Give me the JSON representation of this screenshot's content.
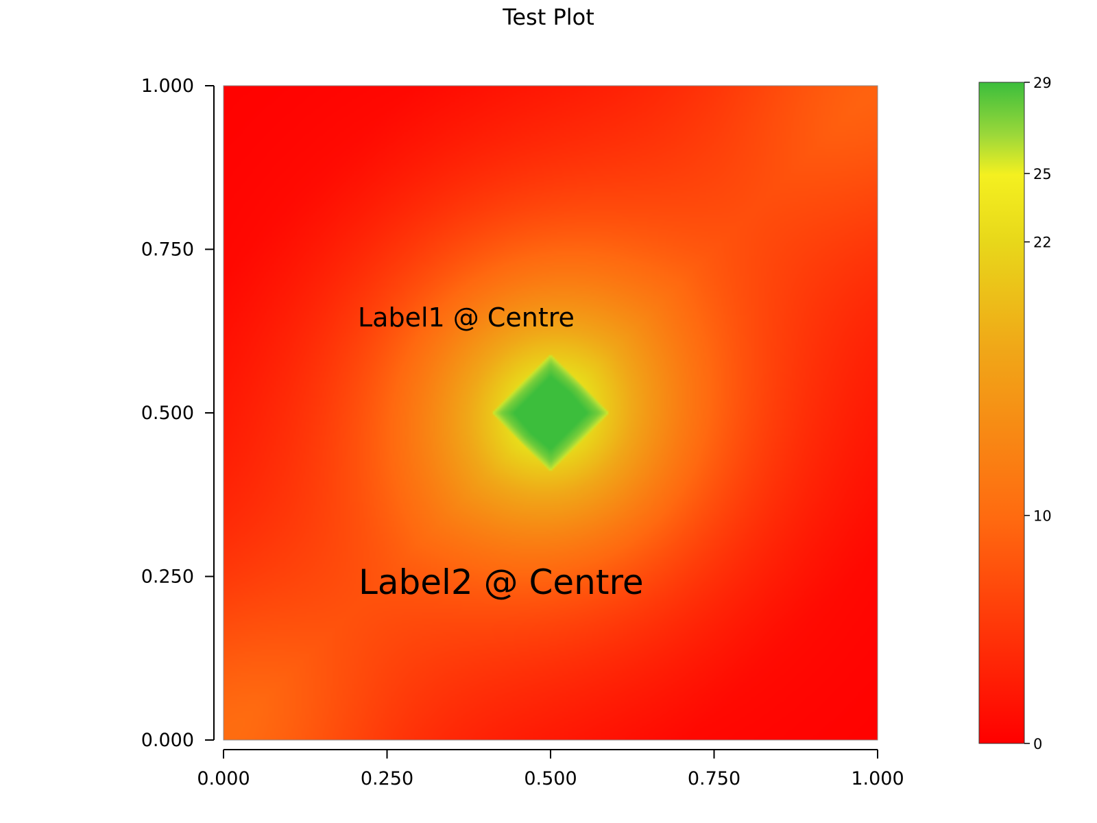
{
  "chart_data": {
    "type": "heatmap",
    "title": "Test Plot",
    "xlabel": "",
    "ylabel": "",
    "xlim": [
      0,
      1
    ],
    "ylim": [
      0,
      1
    ],
    "x_ticks": [
      "0.000",
      "0.250",
      "0.500",
      "0.750",
      "1.000"
    ],
    "y_ticks": [
      "0.000",
      "0.250",
      "0.500",
      "0.750",
      "1.000"
    ],
    "grid": false,
    "peak": {
      "x": 0.5,
      "y": 0.5,
      "value": 29
    },
    "corner_values": {
      "bottom_left": 10,
      "top_right": 10,
      "top_left": 0,
      "bottom_right": 0
    },
    "colorbar": {
      "range": [
        0,
        29
      ],
      "ticks": [
        {
          "value": 0,
          "label": "0"
        },
        {
          "value": 10,
          "label": "10"
        },
        {
          "value": 22,
          "label": "22"
        },
        {
          "value": 25,
          "label": "25"
        },
        {
          "value": 29,
          "label": "29"
        }
      ],
      "colors": {
        "low": "#ff0000",
        "mid_low": "#ff6a10",
        "mid": "#e8d81a",
        "mid_high": "#f4f020",
        "high": "#3cbe3c"
      }
    },
    "annotations": [
      {
        "text": "Label1 @ Centre",
        "x": 0.205,
        "y": 0.645
      },
      {
        "text": "Label2 @ Centre",
        "x": 0.205,
        "y": 0.24
      }
    ]
  }
}
